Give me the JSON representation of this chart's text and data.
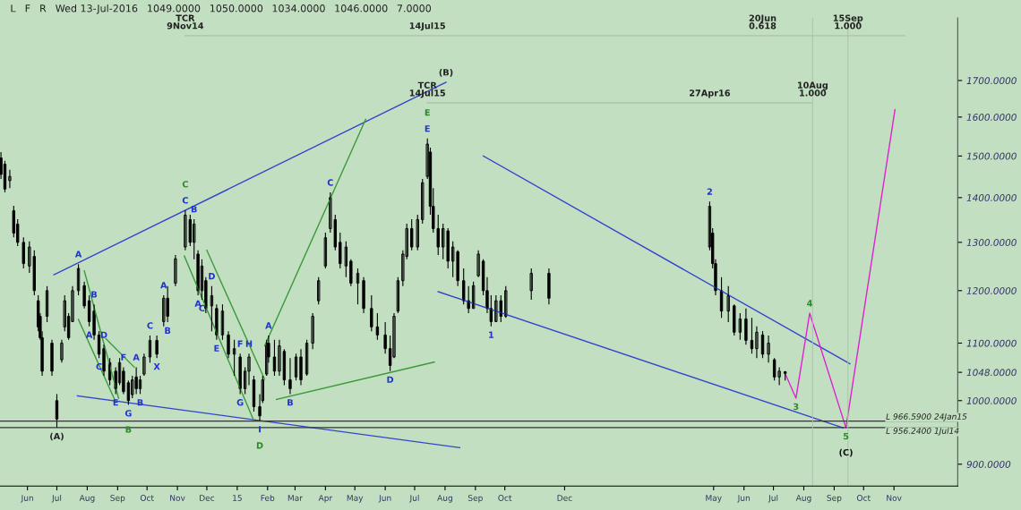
{
  "chart_data": {
    "type": "candlestick",
    "color": "#000000",
    "log": true,
    "grid": false,
    "legend": false,
    "xlim": [
      "2014-05-04",
      "2017-01-05"
    ],
    "ylim": [
      868,
      1886
    ],
    "xticks": [
      {
        "value": "2014-06-01",
        "label": "Jun"
      },
      {
        "value": "2014-07-01",
        "label": "Jul"
      },
      {
        "value": "2014-08-01",
        "label": "Aug"
      },
      {
        "value": "2014-09-01",
        "label": "Sep"
      },
      {
        "value": "2014-10-01",
        "label": "Oct"
      },
      {
        "value": "2014-11-01",
        "label": "Nov"
      },
      {
        "value": "2014-12-01",
        "label": "Dec"
      },
      {
        "value": "2015-01-01",
        "label": "15"
      },
      {
        "value": "2015-02-01",
        "label": "Feb"
      },
      {
        "value": "2015-03-01",
        "label": "Mar"
      },
      {
        "value": "2015-04-01",
        "label": "Apr"
      },
      {
        "value": "2015-05-01",
        "label": "May"
      },
      {
        "value": "2015-06-01",
        "label": "Jun"
      },
      {
        "value": "2015-07-01",
        "label": "Jul"
      },
      {
        "value": "2015-08-01",
        "label": "Aug"
      },
      {
        "value": "2015-09-01",
        "label": "Sep"
      },
      {
        "value": "2015-10-01",
        "label": "Oct"
      },
      {
        "value": "2015-12-01",
        "label": "Dec"
      },
      {
        "value": "2016-05-01",
        "label": "May"
      },
      {
        "value": "2016-06-01",
        "label": "Jun"
      },
      {
        "value": "2016-07-01",
        "label": "Jul"
      },
      {
        "value": "2016-08-01",
        "label": "Aug"
      },
      {
        "value": "2016-09-01",
        "label": "Sep"
      },
      {
        "value": "2016-10-01",
        "label": "Oct"
      },
      {
        "value": "2016-11-01",
        "label": "Nov"
      }
    ],
    "yticks": [
      {
        "value": 900,
        "label": "900.0000"
      },
      {
        "value": 1000,
        "label": "1000.0000"
      },
      {
        "value": 1048,
        "label": "1048.0000"
      },
      {
        "value": 1100,
        "label": "1100.0000"
      },
      {
        "value": 1200,
        "label": "1200.0000"
      },
      {
        "value": 1300,
        "label": "1300.0000"
      },
      {
        "value": 1400,
        "label": "1400.0000"
      },
      {
        "value": 1500,
        "label": "1500.0000"
      },
      {
        "value": 1600,
        "label": "1600.0000"
      },
      {
        "value": 1700,
        "label": "1700.0000"
      }
    ],
    "x": [
      "2014-05-05",
      "2014-05-09",
      "2014-05-14",
      "2014-05-18",
      "2014-05-22",
      "2014-05-28",
      "2014-06-03",
      "2014-06-08",
      "2014-06-12",
      "2014-06-14",
      "2014-06-16",
      "2014-06-21",
      "2014-06-26",
      "2014-07-01",
      "2014-07-06",
      "2014-07-09",
      "2014-07-13",
      "2014-07-17",
      "2014-07-23",
      "2014-07-29",
      "2014-08-03",
      "2014-08-08",
      "2014-08-13",
      "2014-08-18",
      "2014-08-24",
      "2014-08-30",
      "2014-09-03",
      "2014-09-07",
      "2014-09-12",
      "2014-09-16",
      "2014-09-20",
      "2014-09-24",
      "2014-09-28",
      "2014-10-04",
      "2014-10-11",
      "2014-10-18",
      "2014-10-22",
      "2014-10-30",
      "2014-11-09",
      "2014-11-14",
      "2014-11-18",
      "2014-11-22",
      "2014-11-26",
      "2014-11-30",
      "2014-12-06",
      "2014-12-11",
      "2014-12-17",
      "2014-12-23",
      "2014-12-29",
      "2015-01-04",
      "2015-01-09",
      "2015-01-13",
      "2015-01-18",
      "2015-01-24",
      "2015-01-27",
      "2015-01-31",
      "2015-02-02",
      "2015-02-08",
      "2015-02-13",
      "2015-02-18",
      "2015-02-24",
      "2015-03-02",
      "2015-03-07",
      "2015-03-13",
      "2015-03-19",
      "2015-03-25",
      "2015-04-01",
      "2015-04-06",
      "2015-04-11",
      "2015-04-16",
      "2015-04-22",
      "2015-04-27",
      "2015-05-04",
      "2015-05-10",
      "2015-05-18",
      "2015-05-24",
      "2015-06-01",
      "2015-06-06",
      "2015-06-10",
      "2015-06-14",
      "2015-06-19",
      "2015-06-23",
      "2015-06-28",
      "2015-07-04",
      "2015-07-09",
      "2015-07-14",
      "2015-07-17",
      "2015-07-20",
      "2015-07-25",
      "2015-07-30",
      "2015-08-04",
      "2015-08-09",
      "2015-08-14",
      "2015-08-20",
      "2015-08-25",
      "2015-08-30",
      "2015-09-04",
      "2015-09-09",
      "2015-09-13",
      "2015-09-17",
      "2015-09-22",
      "2015-09-27",
      "2015-10-02",
      "2015-10-28",
      "2015-11-15",
      "2016-04-27",
      "2016-04-30",
      "2016-05-03",
      "2016-05-09",
      "2016-05-16",
      "2016-05-22",
      "2016-05-28",
      "2016-06-03",
      "2016-06-09",
      "2016-06-14",
      "2016-06-20",
      "2016-06-26",
      "2016-07-02",
      "2016-07-07",
      "2016-07-13"
    ],
    "ohlc": [
      [
        1495,
        1510,
        1444,
        1455
      ],
      [
        1480,
        1488,
        1412,
        1420
      ],
      [
        1440,
        1466,
        1422,
        1450
      ],
      [
        1370,
        1381,
        1311,
        1320
      ],
      [
        1340,
        1351,
        1292,
        1300
      ],
      [
        1300,
        1311,
        1245,
        1255
      ],
      [
        1250,
        1302,
        1236,
        1290
      ],
      [
        1270,
        1283,
        1191,
        1200
      ],
      [
        1180,
        1191,
        1122,
        1130
      ],
      [
        1150,
        1156,
        1106,
        1110
      ],
      [
        1110,
        1122,
        1042,
        1050
      ],
      [
        1150,
        1209,
        1139,
        1200
      ],
      [
        1100,
        1106,
        1042,
        1050
      ],
      [
        1000,
        1011,
        956,
        970
      ],
      [
        1070,
        1106,
        1065,
        1100
      ],
      [
        1130,
        1191,
        1122,
        1180
      ],
      [
        1150,
        1156,
        1106,
        1110
      ],
      [
        1140,
        1209,
        1139,
        1200
      ],
      [
        1200,
        1254,
        1191,
        1245
      ],
      [
        1210,
        1218,
        1165,
        1170
      ],
      [
        1180,
        1191,
        1131,
        1140
      ],
      [
        1160,
        1173,
        1106,
        1115
      ],
      [
        1115,
        1122,
        1073,
        1080
      ],
      [
        1090,
        1097,
        1042,
        1050
      ],
      [
        1065,
        1073,
        1026,
        1035
      ],
      [
        1050,
        1057,
        1011,
        1020
      ],
      [
        1030,
        1073,
        1026,
        1065
      ],
      [
        1050,
        1057,
        1011,
        1015
      ],
      [
        1030,
        1034,
        993,
        1000
      ],
      [
        1010,
        1042,
        1004,
        1035
      ],
      [
        1040,
        1057,
        1011,
        1020
      ],
      [
        1020,
        1042,
        1011,
        1035
      ],
      [
        1045,
        1081,
        1042,
        1075
      ],
      [
        1075,
        1114,
        1065,
        1105
      ],
      [
        1105,
        1114,
        1073,
        1080
      ],
      [
        1140,
        1191,
        1131,
        1185
      ],
      [
        1185,
        1209,
        1139,
        1150
      ],
      [
        1215,
        1273,
        1209,
        1265
      ],
      [
        1290,
        1371,
        1283,
        1360
      ],
      [
        1350,
        1361,
        1292,
        1300
      ],
      [
        1300,
        1351,
        1264,
        1340
      ],
      [
        1275,
        1283,
        1191,
        1200
      ],
      [
        1200,
        1264,
        1182,
        1250
      ],
      [
        1220,
        1227,
        1156,
        1165
      ],
      [
        1170,
        1209,
        1122,
        1190
      ],
      [
        1165,
        1173,
        1106,
        1115
      ],
      [
        1115,
        1173,
        1106,
        1160
      ],
      [
        1115,
        1122,
        1073,
        1080
      ],
      [
        1080,
        1106,
        1042,
        1090
      ],
      [
        1075,
        1081,
        1011,
        1020
      ],
      [
        1020,
        1057,
        1011,
        1050
      ],
      [
        1050,
        1081,
        1026,
        1075
      ],
      [
        1035,
        1042,
        982,
        990
      ],
      [
        990,
        1011,
        967,
        975
      ],
      [
        1000,
        1042,
        996,
        1035
      ],
      [
        1045,
        1106,
        1042,
        1100
      ],
      [
        1100,
        1114,
        1065,
        1075
      ],
      [
        1075,
        1106,
        1042,
        1050
      ],
      [
        1050,
        1106,
        1042,
        1095
      ],
      [
        1085,
        1089,
        1026,
        1035
      ],
      [
        1035,
        1073,
        1011,
        1020
      ],
      [
        1040,
        1081,
        1034,
        1075
      ],
      [
        1075,
        1089,
        1026,
        1035
      ],
      [
        1045,
        1106,
        1042,
        1100
      ],
      [
        1100,
        1156,
        1089,
        1150
      ],
      [
        1180,
        1227,
        1173,
        1220
      ],
      [
        1250,
        1321,
        1245,
        1310
      ],
      [
        1330,
        1412,
        1321,
        1400
      ],
      [
        1350,
        1361,
        1283,
        1290
      ],
      [
        1300,
        1321,
        1245,
        1255
      ],
      [
        1250,
        1302,
        1227,
        1290
      ],
      [
        1260,
        1264,
        1209,
        1215
      ],
      [
        1215,
        1245,
        1173,
        1235
      ],
      [
        1220,
        1227,
        1156,
        1165
      ],
      [
        1165,
        1191,
        1122,
        1130
      ],
      [
        1130,
        1156,
        1106,
        1115
      ],
      [
        1115,
        1139,
        1081,
        1090
      ],
      [
        1090,
        1114,
        1050,
        1060
      ],
      [
        1075,
        1156,
        1073,
        1150
      ],
      [
        1160,
        1227,
        1156,
        1220
      ],
      [
        1220,
        1283,
        1209,
        1275
      ],
      [
        1270,
        1341,
        1264,
        1330
      ],
      [
        1330,
        1351,
        1283,
        1290
      ],
      [
        1290,
        1361,
        1283,
        1350
      ],
      [
        1350,
        1444,
        1341,
        1435
      ],
      [
        1450,
        1544,
        1444,
        1530
      ],
      [
        1510,
        1521,
        1361,
        1380
      ],
      [
        1380,
        1422,
        1321,
        1330
      ],
      [
        1330,
        1361,
        1273,
        1290
      ],
      [
        1290,
        1341,
        1264,
        1330
      ],
      [
        1325,
        1331,
        1245,
        1260
      ],
      [
        1260,
        1302,
        1227,
        1290
      ],
      [
        1280,
        1283,
        1209,
        1220
      ],
      [
        1220,
        1245,
        1173,
        1180
      ],
      [
        1180,
        1209,
        1156,
        1165
      ],
      [
        1165,
        1218,
        1165,
        1210
      ],
      [
        1230,
        1283,
        1227,
        1275
      ],
      [
        1260,
        1264,
        1191,
        1200
      ],
      [
        1200,
        1227,
        1156,
        1165
      ],
      [
        1165,
        1191,
        1131,
        1140
      ],
      [
        1140,
        1191,
        1139,
        1180
      ],
      [
        1180,
        1191,
        1139,
        1150
      ],
      [
        1150,
        1209,
        1147,
        1200
      ],
      [
        1200,
        1245,
        1182,
        1235
      ],
      [
        1235,
        1245,
        1173,
        1185
      ],
      [
        1290,
        1391,
        1283,
        1380
      ],
      [
        1320,
        1331,
        1245,
        1255
      ],
      [
        1255,
        1264,
        1191,
        1200
      ],
      [
        1200,
        1227,
        1147,
        1160
      ],
      [
        1160,
        1209,
        1139,
        1190
      ],
      [
        1170,
        1173,
        1114,
        1120
      ],
      [
        1120,
        1156,
        1106,
        1145
      ],
      [
        1145,
        1165,
        1097,
        1105
      ],
      [
        1105,
        1147,
        1081,
        1090
      ],
      [
        1090,
        1131,
        1073,
        1120
      ],
      [
        1115,
        1122,
        1073,
        1080
      ],
      [
        1080,
        1114,
        1065,
        1100
      ],
      [
        1070,
        1073,
        1034,
        1040
      ],
      [
        1040,
        1057,
        1026,
        1050
      ],
      [
        1049,
        1050,
        1034,
        1046
      ]
    ],
    "series": [
      {
        "type": "line",
        "color": "#3344cc",
        "x": [
          "2014-06-28",
          "2015-08-02"
        ],
        "values": [
          1232,
          1695
        ]
      },
      {
        "type": "line",
        "color": "#3344cc",
        "x": [
          "2014-07-22",
          "2015-08-16"
        ],
        "values": [
          1008,
          925
        ]
      },
      {
        "type": "line",
        "color": "#3344cc",
        "x": [
          "2015-09-09",
          "2016-09-17"
        ],
        "values": [
          1500,
          1063
        ]
      },
      {
        "type": "line",
        "color": "#3344cc",
        "x": [
          "2015-07-25",
          "2016-09-10"
        ],
        "values": [
          1198,
          956
        ]
      },
      {
        "type": "line",
        "color": "#3a9a3a",
        "x": [
          "2014-07-29",
          "2014-09-02"
        ],
        "values": [
          1240,
          1004
        ]
      },
      {
        "type": "line",
        "color": "#3a9a3a",
        "x": [
          "2014-07-23",
          "2014-08-30"
        ],
        "values": [
          1144,
          998
        ]
      },
      {
        "type": "line",
        "color": "#3a9a3a",
        "x": [
          "2014-08-20",
          "2014-09-18"
        ],
        "values": [
          1108,
          1057
        ]
      },
      {
        "type": "line",
        "color": "#3a9a3a",
        "x": [
          "2014-11-08",
          "2015-01-18"
        ],
        "values": [
          1271,
          967
        ]
      },
      {
        "type": "line",
        "color": "#3a9a3a",
        "x": [
          "2014-12-01",
          "2015-01-29"
        ],
        "values": [
          1283,
          1036
        ]
      },
      {
        "type": "line",
        "color": "#3a9a3a",
        "x": [
          "2015-01-29",
          "2015-05-12"
        ],
        "values": [
          1095,
          1594
        ]
      },
      {
        "type": "line",
        "color": "#3a9a3a",
        "x": [
          "2015-02-10",
          "2015-07-21"
        ],
        "values": [
          1002,
          1066
        ]
      },
      {
        "type": "line",
        "color": "#e020d0",
        "x": [
          "2016-07-13",
          "2016-07-24",
          "2016-08-07",
          "2016-09-13",
          "2016-11-02"
        ],
        "values": [
          1046,
          1004,
          1156,
          956,
          1620
        ]
      },
      {
        "type": "line",
        "color": "#a8c4a8",
        "x": [
          "2014-11-09",
          "2016-11-12"
        ],
        "values": [
          1831,
          1831
        ]
      },
      {
        "type": "line",
        "color": "#a8c4a8",
        "x": [
          "2015-07-14",
          "2016-08-10"
        ],
        "values": [
          1638,
          1638
        ]
      }
    ],
    "ref_lines": [
      {
        "axis": "y",
        "value": 966.59,
        "label": "L 966.5900 24Jan15",
        "color": "#333333"
      },
      {
        "axis": "y",
        "value": 956.24,
        "label": "L 956.2400 1Jul14",
        "color": "#333333"
      },
      {
        "axis": "x",
        "value": "2016-08-10",
        "color": "#a8c4a8"
      },
      {
        "axis": "x",
        "value": "2016-09-15",
        "color": "#a8c4a8"
      }
    ],
    "annotations": [
      "L",
      "F",
      "R",
      "Wed 13-Jul-2016",
      "1049.0000",
      "1050.0000",
      "1034.0000",
      "1046.0000",
      "7.0000",
      {
        "text": "TCR\n9Nov14",
        "x": "2014-11-09",
        "y": 1831
      },
      {
        "text": "14Jul15",
        "x": "2015-07-14",
        "y": 1831
      },
      {
        "text": "20Jun\n0.618",
        "x": "2016-06-20",
        "y": 1831
      },
      {
        "text": "15Sep\n1.000",
        "x": "2016-09-15",
        "y": 1831
      },
      {
        "text": "27Apr16",
        "x": "2016-04-27",
        "y": 1638
      },
      {
        "text": "10Aug\n1.000",
        "x": "2016-08-10",
        "y": 1638
      },
      {
        "text": "E",
        "x": "2015-07-14",
        "y": 1544
      },
      {
        "text": "E",
        "x": "2015-07-14",
        "y": 1544
      },
      {
        "text": "TCR\n14Jul15",
        "x": "2015-07-14",
        "y": 1638
      },
      {
        "text": "(B)",
        "x": "2015-08-02",
        "y": 1695
      },
      {
        "text": "(A)",
        "x": "2014-07-01",
        "y": 956
      },
      {
        "text": "A",
        "x": "2014-07-23",
        "y": 1254
      },
      {
        "text": "G",
        "x": "2014-09-12",
        "y": 993
      },
      {
        "text": "B",
        "x": "2014-09-12",
        "y": 993
      },
      {
        "text": "C",
        "x": "2014-11-09",
        "y": 1371
      },
      {
        "text": "C",
        "x": "2014-11-09",
        "y": 1371
      },
      {
        "text": "I",
        "x": "2015-01-24",
        "y": 967
      },
      {
        "text": "D",
        "x": "2015-01-24",
        "y": 967
      },
      {
        "text": "1",
        "x": "2015-09-17",
        "y": 1131
      },
      {
        "text": "2",
        "x": "2016-04-27",
        "y": 1391
      },
      {
        "text": "3",
        "x": "2016-07-24",
        "y": 1004
      },
      {
        "text": "4",
        "x": "2016-08-07",
        "y": 1156
      },
      {
        "text": "5",
        "x": "2016-09-13",
        "y": 956
      },
      {
        "text": "(C)",
        "x": "2016-09-13",
        "y": 956
      },
      {
        "text": "B",
        "x": "2014-08-08",
        "y": 1173
      },
      {
        "text": "A",
        "x": "2014-08-03",
        "y": 1131
      },
      {
        "text": "C",
        "x": "2014-08-13",
        "y": 1073
      },
      {
        "text": "D",
        "x": "2014-08-18",
        "y": 1097
      },
      {
        "text": "F",
        "x": "2014-09-07",
        "y": 1057
      },
      {
        "text": "A",
        "x": "2014-09-20",
        "y": 1057
      },
      {
        "text": "E",
        "x": "2014-08-30",
        "y": 1011
      },
      {
        "text": "B",
        "x": "2014-09-24",
        "y": 1011
      },
      {
        "text": "C",
        "x": "2014-10-04",
        "y": 1114
      },
      {
        "text": "X",
        "x": "2014-10-11",
        "y": 1073
      },
      {
        "text": "A",
        "x": "2014-10-18",
        "y": 1191
      },
      {
        "text": "B",
        "x": "2014-10-22",
        "y": 1139
      },
      {
        "text": "A",
        "x": "2014-11-22",
        "y": 1191
      },
      {
        "text": "C",
        "x": "2014-11-26",
        "y": 1182
      },
      {
        "text": "B",
        "x": "2014-11-18",
        "y": 1351
      },
      {
        "text": "D",
        "x": "2014-12-06",
        "y": 1209
      },
      {
        "text": "E",
        "x": "2014-12-11",
        "y": 1106
      },
      {
        "text": "F",
        "x": "2015-01-04",
        "y": 1081
      },
      {
        "text": "G",
        "x": "2015-01-04",
        "y": 1011
      },
      {
        "text": "H",
        "x": "2015-01-13",
        "y": 1081
      },
      {
        "text": "A",
        "x": "2015-02-02",
        "y": 1114
      },
      {
        "text": "B",
        "x": "2015-02-24",
        "y": 1011
      },
      {
        "text": "C",
        "x": "2015-04-06",
        "y": 1412
      },
      {
        "text": "D",
        "x": "2015-06-06",
        "y": 1050
      }
    ]
  }
}
